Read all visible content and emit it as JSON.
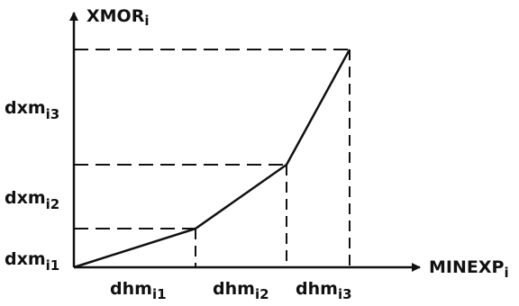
{
  "axes": {
    "y_label": {
      "main": "XMOR",
      "sub": "i"
    },
    "x_label": {
      "main": "MINEXP",
      "sub": "i"
    }
  },
  "y_segment_labels": [
    {
      "main": "dxm",
      "sub": "i1"
    },
    {
      "main": "dxm",
      "sub": "i2"
    },
    {
      "main": "dxm",
      "sub": "i3"
    }
  ],
  "x_segment_labels": [
    {
      "main": "dhm",
      "sub": "i1"
    },
    {
      "main": "dhm",
      "sub": "i2"
    },
    {
      "main": "dhm",
      "sub": "i3"
    }
  ],
  "colors": {
    "ink": "#111111",
    "background": "#ffffff"
  }
}
